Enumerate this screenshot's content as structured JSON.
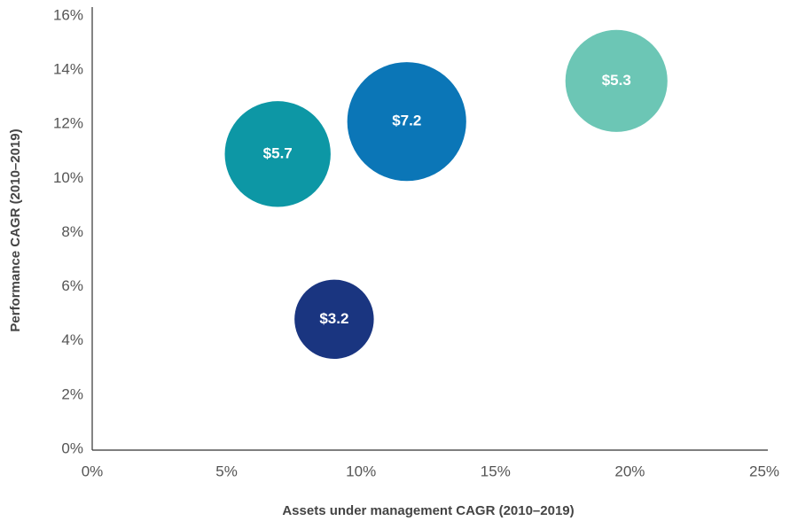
{
  "chart_data": {
    "type": "bubble",
    "x_label": "Assets under management CAGR (2010–2019)",
    "y_label": "Performance CAGR (2010–2019)",
    "x": [
      6.9,
      11.7,
      19.5,
      9.0
    ],
    "values": [
      10.9,
      12.1,
      13.6,
      4.8
    ],
    "sizes": [
      5.7,
      7.2,
      5.3,
      3.2
    ],
    "size_labels": [
      "$5.7",
      "$7.2",
      "$5.3",
      "$3.2"
    ],
    "colors": [
      "#0d97a5",
      "#0b76b7",
      "#6cc6b5",
      "#1a3580"
    ],
    "xlim": [
      0,
      25
    ],
    "xticks": [
      {
        "value": 0,
        "label": "0%"
      },
      {
        "value": 5,
        "label": "5%"
      },
      {
        "value": 10,
        "label": "10%"
      },
      {
        "value": 15,
        "label": "15%"
      },
      {
        "value": 20,
        "label": "20%"
      },
      {
        "value": 25,
        "label": "25%"
      }
    ],
    "ylim": [
      0,
      16
    ],
    "yticks": [
      {
        "value": 0,
        "label": "0%"
      },
      {
        "value": 2,
        "label": "2%"
      },
      {
        "value": 4,
        "label": "4%"
      },
      {
        "value": 6,
        "label": "6%"
      },
      {
        "value": 8,
        "label": "8%"
      },
      {
        "value": 10,
        "label": "10%"
      },
      {
        "value": 12,
        "label": "12%"
      },
      {
        "value": 14,
        "label": "14%"
      },
      {
        "value": 16,
        "label": "16%"
      }
    ]
  }
}
